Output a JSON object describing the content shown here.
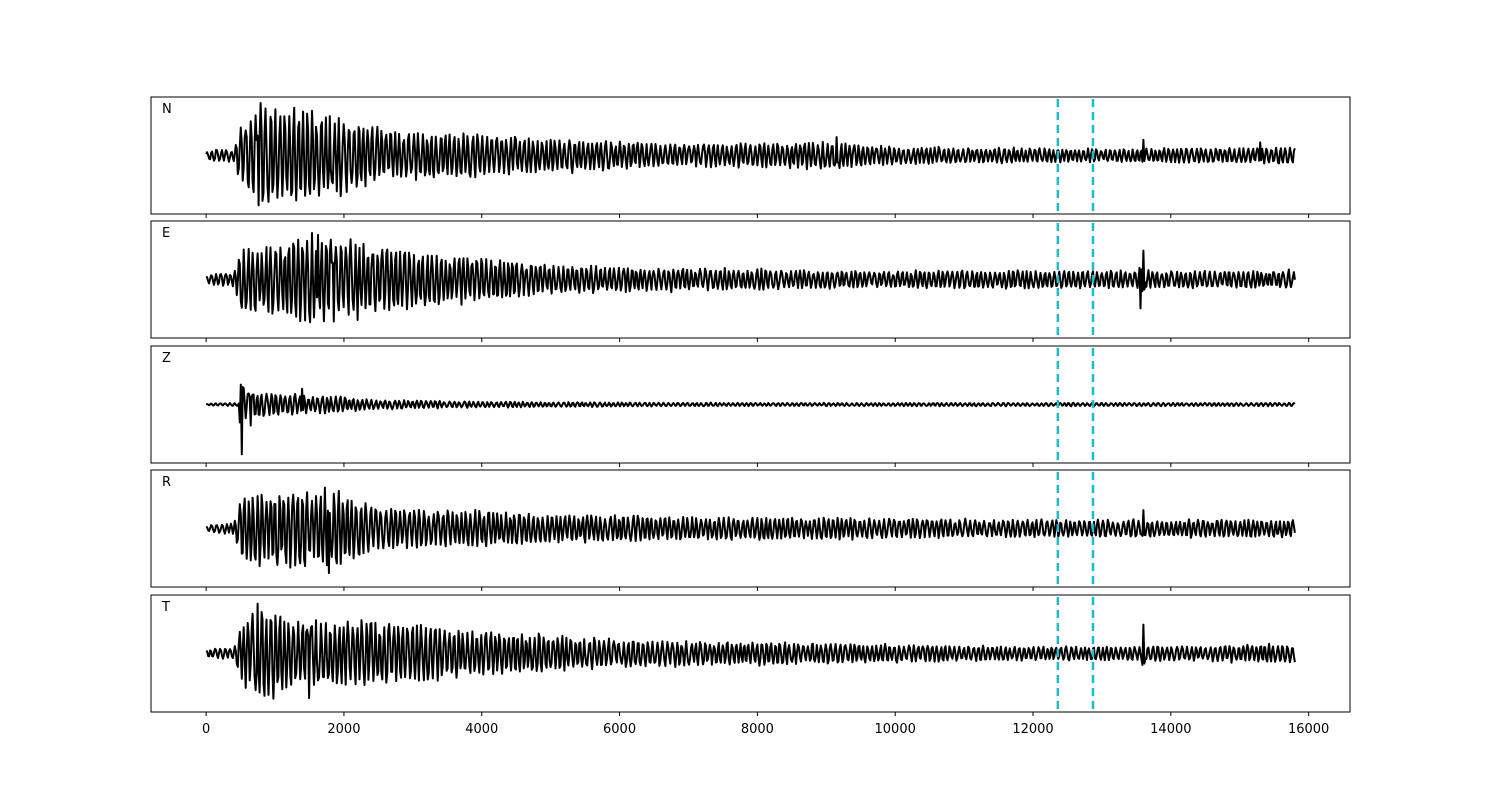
{
  "chart_data": {
    "type": "line",
    "xlim": [
      -800,
      16600
    ],
    "x_ticks": [
      0,
      2000,
      4000,
      6000,
      8000,
      10000,
      12000,
      14000,
      16000
    ],
    "x_tick_labels": [
      "0",
      "2000",
      "4000",
      "6000",
      "8000",
      "10000",
      "12000",
      "14000",
      "16000"
    ],
    "samples": [
      0,
      15800
    ],
    "grid": false,
    "line_color": "#000000",
    "marker_color": "#17becf",
    "markers": [
      12360,
      12870
    ],
    "panels": [
      {
        "name": "N",
        "ylim": [
          -1,
          1
        ],
        "onset": 500,
        "envelope": [
          [
            0,
            0.1
          ],
          [
            400,
            0.12
          ],
          [
            500,
            0.55
          ],
          [
            800,
            0.9
          ],
          [
            1800,
            0.75
          ],
          [
            2600,
            0.45
          ],
          [
            4500,
            0.35
          ],
          [
            7000,
            0.2
          ],
          [
            9000,
            0.25
          ],
          [
            10000,
            0.15
          ],
          [
            13000,
            0.12
          ],
          [
            15800,
            0.15
          ]
        ],
        "events": [
          [
            760,
            -0.95
          ],
          [
            1800,
            0.75
          ],
          [
            9150,
            0.35
          ],
          [
            13600,
            0.3
          ],
          [
            15300,
            0.25
          ]
        ],
        "seed": 11
      },
      {
        "name": "E",
        "ylim": [
          -1,
          1
        ],
        "onset": 500,
        "envelope": [
          [
            0,
            0.1
          ],
          [
            400,
            0.12
          ],
          [
            500,
            0.55
          ],
          [
            800,
            0.6
          ],
          [
            1600,
            0.85
          ],
          [
            1800,
            0.8
          ],
          [
            3000,
            0.5
          ],
          [
            5200,
            0.25
          ],
          [
            7000,
            0.2
          ],
          [
            9000,
            0.16
          ],
          [
            13000,
            0.16
          ],
          [
            15800,
            0.16
          ]
        ],
        "events": [
          [
            1620,
            0.85
          ],
          [
            1850,
            -0.8
          ],
          [
            13600,
            0.55
          ],
          [
            13560,
            -0.55
          ]
        ],
        "seed": 23
      },
      {
        "name": "Z",
        "ylim": [
          -1,
          1
        ],
        "onset": 500,
        "envelope": [
          [
            0,
            0.02
          ],
          [
            480,
            0.03
          ],
          [
            500,
            0.3
          ],
          [
            1000,
            0.2
          ],
          [
            1800,
            0.15
          ],
          [
            2600,
            0.08
          ],
          [
            4000,
            0.05
          ],
          [
            8000,
            0.03
          ],
          [
            15800,
            0.03
          ]
        ],
        "events": [
          [
            500,
            0.85
          ],
          [
            520,
            -0.95
          ],
          [
            650,
            -0.4
          ],
          [
            1400,
            0.3
          ]
        ],
        "seed": 37
      },
      {
        "name": "R",
        "ylim": [
          -1,
          1
        ],
        "onset": 500,
        "envelope": [
          [
            0,
            0.08
          ],
          [
            400,
            0.1
          ],
          [
            500,
            0.55
          ],
          [
            800,
            0.7
          ],
          [
            1800,
            0.7
          ],
          [
            2600,
            0.4
          ],
          [
            4500,
            0.3
          ],
          [
            7000,
            0.2
          ],
          [
            9000,
            0.2
          ],
          [
            12000,
            0.15
          ],
          [
            15800,
            0.16
          ]
        ],
        "events": [
          [
            1800,
            0.92
          ],
          [
            1780,
            -0.85
          ],
          [
            13600,
            0.35
          ]
        ],
        "seed": 53
      },
      {
        "name": "T",
        "ylim": [
          -1,
          1
        ],
        "onset": 500,
        "envelope": [
          [
            0,
            0.08
          ],
          [
            400,
            0.1
          ],
          [
            500,
            0.55
          ],
          [
            800,
            0.85
          ],
          [
            1500,
            0.6
          ],
          [
            2400,
            0.6
          ],
          [
            4000,
            0.4
          ],
          [
            6000,
            0.25
          ],
          [
            9000,
            0.18
          ],
          [
            12000,
            0.12
          ],
          [
            15800,
            0.16
          ]
        ],
        "events": [
          [
            750,
            0.95
          ],
          [
            1500,
            -0.85
          ],
          [
            13600,
            0.55
          ]
        ],
        "seed": 71
      }
    ]
  }
}
